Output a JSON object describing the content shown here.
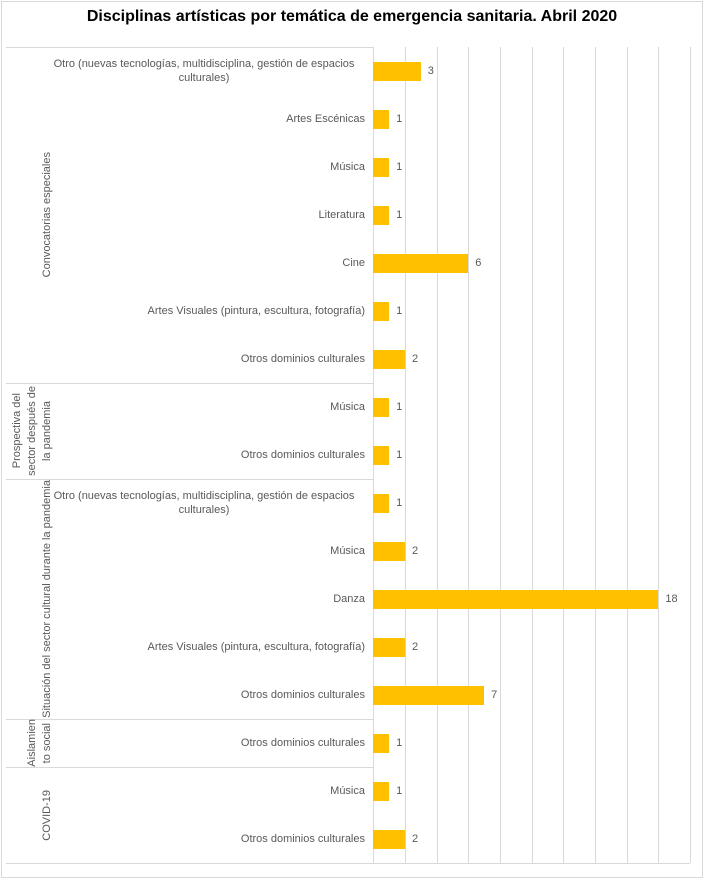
{
  "title": "Disciplinas artísticas por temática de emergencia sanitaria. Abril 2020",
  "colors": {
    "bar": "#FFC000",
    "gridline": "#D9D9D9",
    "axis_text": "#595959",
    "title_text": "#000000",
    "border": "#D9D9D9"
  },
  "chart_data": {
    "type": "bar",
    "orientation": "horizontal",
    "title": "Disciplinas artísticas por temática de emergencia sanitaria. Abril 2020",
    "xlabel": "",
    "ylabel": "",
    "xlim": [
      0,
      20
    ],
    "gridline_step": 2,
    "grid": true,
    "legend": false,
    "value_labels": true,
    "bar_color": "#FFC000",
    "groups": [
      {
        "label": "Convocatorias especiales",
        "label_lines": [
          "Convocatorias especiales"
        ],
        "items": [
          {
            "category": "Otro (nuevas tecnologías, multidisciplina, gestión de espacios culturales)",
            "value": 3
          },
          {
            "category": "Artes Escénicas",
            "value": 1
          },
          {
            "category": "Música",
            "value": 1
          },
          {
            "category": "Literatura",
            "value": 1
          },
          {
            "category": "Cine",
            "value": 6
          },
          {
            "category": "Artes Visuales (pintura, escultura, fotografía)",
            "value": 1
          },
          {
            "category": "Otros dominios culturales",
            "value": 2
          }
        ]
      },
      {
        "label": "Prospectiva del sector después de la pandemia",
        "label_lines": [
          "Prospectiva del",
          "sector después de",
          "la pandemia"
        ],
        "items": [
          {
            "category": "Música",
            "value": 1
          },
          {
            "category": "Otros dominios culturales",
            "value": 1
          }
        ]
      },
      {
        "label": "Situación del sector cultural durante la pandemia",
        "label_lines": [
          "Situación del sector cultural durante la pandemia"
        ],
        "items": [
          {
            "category": "Otro (nuevas tecnologías, multidisciplina, gestión de espacios culturales)",
            "value": 1
          },
          {
            "category": "Música",
            "value": 2
          },
          {
            "category": "Danza",
            "value": 18
          },
          {
            "category": "Artes Visuales (pintura, escultura, fotografía)",
            "value": 2
          },
          {
            "category": "Otros dominios culturales",
            "value": 7
          }
        ]
      },
      {
        "label": "Aislamiento social",
        "label_lines": [
          "Aislamien",
          "to social"
        ],
        "items": [
          {
            "category": "Otros dominios culturales",
            "value": 1
          }
        ]
      },
      {
        "label": "COVID-19",
        "label_lines": [
          "COVID-19"
        ],
        "items": [
          {
            "category": "Música",
            "value": 1
          },
          {
            "category": "Otros dominios culturales",
            "value": 2
          }
        ]
      }
    ]
  }
}
